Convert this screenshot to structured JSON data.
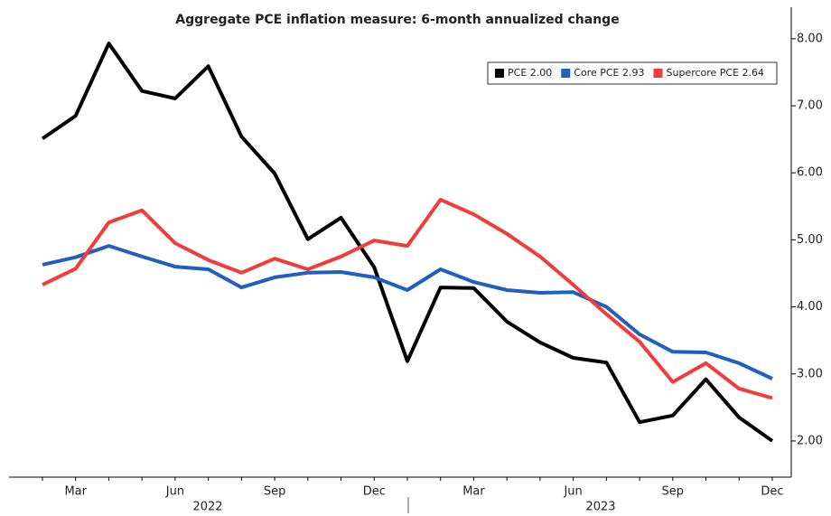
{
  "chart_data": {
    "type": "line",
    "title": "Aggregate PCE inflation measure: 6-month annualized change",
    "categories": [
      null,
      "Mar",
      null,
      null,
      "Jun",
      null,
      null,
      "Sep",
      null,
      null,
      "Dec",
      null,
      null,
      "Mar",
      null,
      null,
      "Jun",
      null,
      null,
      "Sep",
      null,
      null,
      "Dec"
    ],
    "year_labels": [
      "2022",
      "2023"
    ],
    "series": [
      {
        "name": "PCE 2.00",
        "color": "#000000",
        "values": [
          6.51,
          6.85,
          7.93,
          7.22,
          7.11,
          7.59,
          6.54,
          5.99,
          5.01,
          5.33,
          4.59,
          3.19,
          4.29,
          4.28,
          3.78,
          3.47,
          3.24,
          3.17,
          2.28,
          2.38,
          2.92,
          2.35,
          2.0
        ]
      },
      {
        "name": "Core PCE 2.93",
        "color": "#1f5fbf",
        "values": [
          4.63,
          4.74,
          4.91,
          4.75,
          4.6,
          4.56,
          4.29,
          4.44,
          4.51,
          4.52,
          4.44,
          4.25,
          4.56,
          4.37,
          4.25,
          4.21,
          4.22,
          4.0,
          3.59,
          3.33,
          3.32,
          3.16,
          2.93
        ]
      },
      {
        "name": "Supercore PCE 2.64",
        "color": "#f23c3c",
        "values": [
          4.33,
          4.57,
          5.26,
          5.44,
          4.95,
          4.7,
          4.51,
          4.72,
          4.56,
          4.75,
          4.99,
          4.91,
          5.6,
          5.38,
          5.09,
          4.75,
          4.33,
          3.89,
          3.48,
          2.88,
          3.16,
          2.78,
          2.64
        ]
      }
    ],
    "ylim": [
      1.46,
      8.47
    ],
    "yticks": [
      {
        "value": 2,
        "label": "2.00"
      },
      {
        "value": 3,
        "label": "3.00"
      },
      {
        "value": 4,
        "label": "4.00"
      },
      {
        "value": 5,
        "label": "5.00"
      },
      {
        "value": 6,
        "label": "6.00"
      },
      {
        "value": 7,
        "label": "7.00"
      },
      {
        "value": 8,
        "label": "8.00"
      }
    ],
    "legend": "top-right"
  }
}
